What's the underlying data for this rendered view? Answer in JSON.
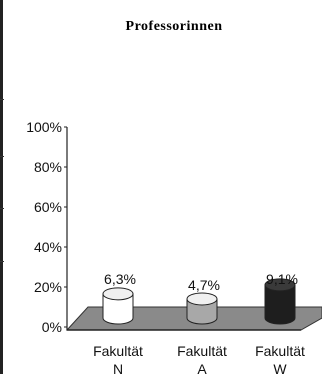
{
  "chart_data": {
    "type": "bar",
    "title": "Professorinnen",
    "categories": [
      [
        "Fakultät",
        "N"
      ],
      [
        "Fakultät",
        "A"
      ],
      [
        "Fakultät",
        "W"
      ]
    ],
    "values": [
      6.3,
      4.7,
      9.1
    ],
    "value_labels": [
      "6,3%",
      "4,7%",
      "9,1%"
    ],
    "y_ticks": [
      "0%",
      "20%",
      "40%",
      "60%",
      "80%",
      "100%"
    ],
    "ylim": [
      0,
      100
    ],
    "grid": false,
    "bar_style": "3d-cylinder",
    "colors": [
      "#ffffff",
      "#a8a8a8",
      "#1e1e1e"
    ]
  }
}
